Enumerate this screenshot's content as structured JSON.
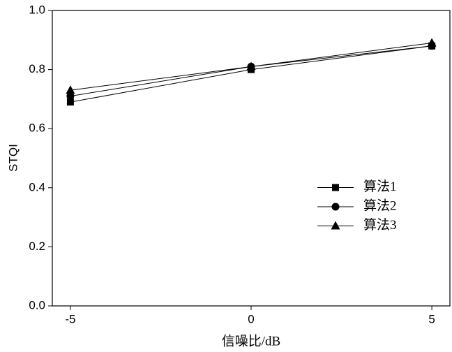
{
  "chart_data": {
    "type": "line",
    "x_label": "信噪比/dB",
    "y_label": "STQI",
    "x": [
      -5,
      0,
      5
    ],
    "series": [
      {
        "name": "算法1",
        "color": "#000000",
        "marker": "square",
        "values": [
          0.69,
          0.8,
          0.88
        ]
      },
      {
        "name": "算法2",
        "color": "#000000",
        "marker": "circle",
        "values": [
          0.71,
          0.81,
          0.88
        ]
      },
      {
        "name": "算法3",
        "color": "#000000",
        "marker": "triangle",
        "values": [
          0.73,
          0.81,
          0.89
        ]
      }
    ],
    "xlim": [
      -5.5,
      5.5
    ],
    "xticks": [
      -5,
      0,
      5
    ],
    "ylim": [
      0,
      1.0
    ],
    "yticks": [
      {
        "value": 0,
        "label": "0.0"
      },
      0.2,
      0.4,
      0.6,
      0.8,
      {
        "value": 1.0,
        "label": "1.0"
      }
    ],
    "grid": false,
    "legend": "center right"
  }
}
